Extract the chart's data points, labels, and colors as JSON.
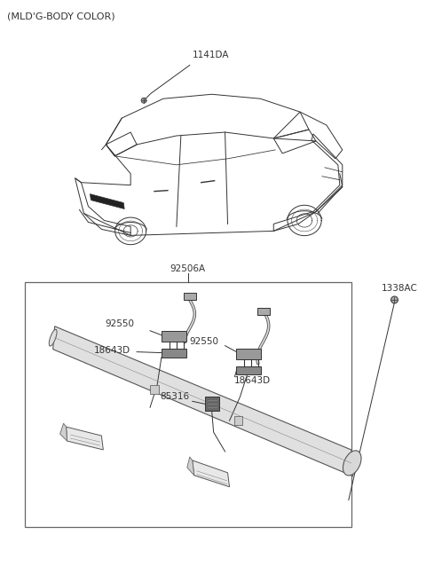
{
  "title": "(MLD'G-BODY COLOR)",
  "bg": "#ffffff",
  "lc": "#333333",
  "lc_thin": "#555555",
  "label_1141DA": "1141DA",
  "label_92506A": "92506A",
  "label_1338AC": "1338AC",
  "label_92550_L": "92550",
  "label_92550_R": "92550",
  "label_18643D_L": "18643D",
  "label_18643D_R": "18643D",
  "label_85316": "85316",
  "car_lw": 0.7,
  "detail_lw": 0.7
}
